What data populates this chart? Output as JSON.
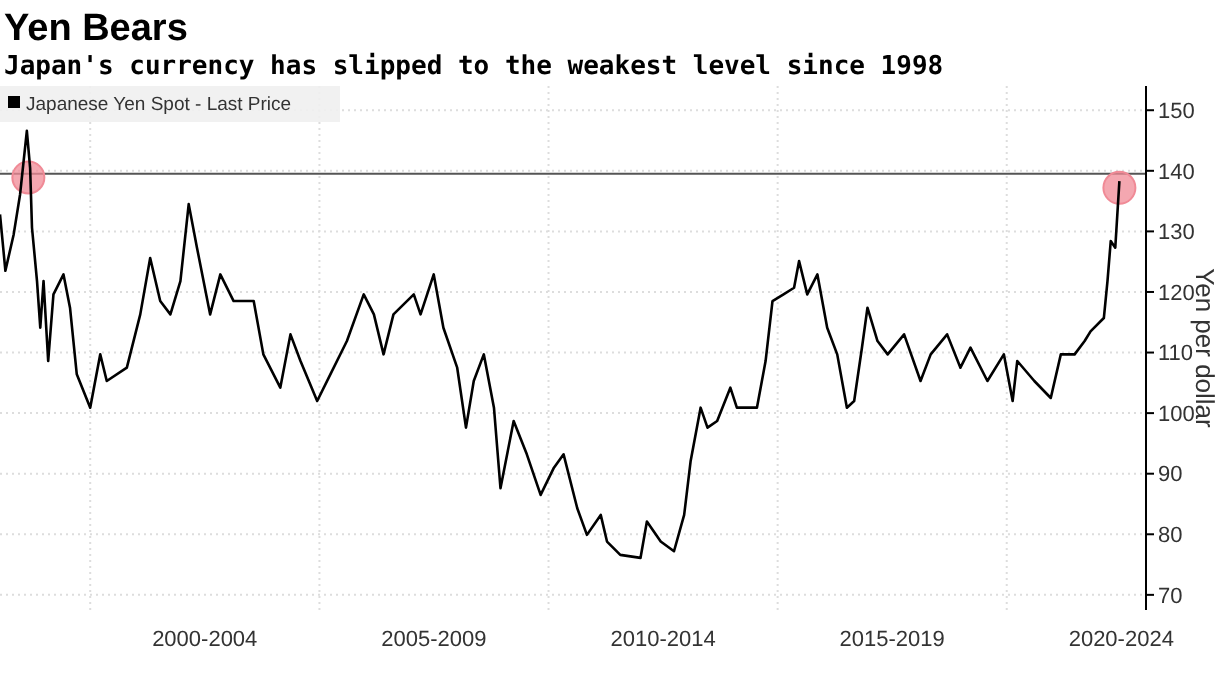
{
  "chart_data": {
    "type": "line",
    "title": "Yen Bears",
    "subtitle": "Japan's currency has slipped to the weakest level since 1998",
    "ylabel": "Yen per dollar",
    "xlim": [
      "1998-01-12",
      "2023-01-15"
    ],
    "xticks": [
      {
        "value": "2000-01-01",
        "label": null
      },
      {
        "value": "2002-07-02",
        "label": "2000-2004"
      },
      {
        "value": "2005-01-01",
        "label": null
      },
      {
        "value": "2007-07-02",
        "label": "2005-2009"
      },
      {
        "value": "2010-01-01",
        "label": null
      },
      {
        "value": "2012-07-02",
        "label": "2010-2014"
      },
      {
        "value": "2015-01-01",
        "label": null
      },
      {
        "value": "2017-07-02",
        "label": "2015-2019"
      },
      {
        "value": "2020-01-01",
        "label": null
      },
      {
        "value": "2022-07-02",
        "label": "2020-2024"
      }
    ],
    "ylim": [
      67.5,
      154
    ],
    "yticks": [
      70,
      80,
      90,
      100,
      110,
      120,
      130,
      140,
      150
    ],
    "grid": true,
    "legend": "top left",
    "ref_lines": [
      {
        "axis": "y",
        "value": 139.5,
        "color": "#555555"
      }
    ],
    "series": [
      {
        "name": "Japanese Yen Spot - Last Price",
        "color": "#000000",
        "x": [
          "1998-01-12",
          "1998-02-24",
          "1998-05-01",
          "1998-06-21",
          "1998-08-14",
          "1998-09-09",
          "1998-09-24",
          "1998-11-03",
          "1998-11-29",
          "1998-12-25",
          "1999-01-31",
          "1999-03-14",
          "1999-06-02",
          "1999-07-24",
          "1999-09-16",
          "2000-01-01",
          "2000-03-21",
          "2000-05-12",
          "2000-10-19",
          "2001-02-03",
          "2001-04-23",
          "2001-07-12",
          "2001-10-01",
          "2001-12-20",
          "2002-02-24",
          "2002-05-01",
          "2002-08-14",
          "2002-11-03",
          "2003-02-17",
          "2003-07-27",
          "2003-10-12",
          "2004-02-24",
          "2004-05-15",
          "2004-08-03",
          "2004-12-14",
          "2005-03-29",
          "2005-08-08",
          "2005-12-20",
          "2006-03-11",
          "2006-05-27",
          "2006-08-14",
          "2007-01-23",
          "2007-03-18",
          "2007-07-01",
          "2007-09-16",
          "2008-01-04",
          "2008-03-14",
          "2008-05-15",
          "2008-08-03",
          "2008-10-23",
          "2008-12-14",
          "2009-03-29",
          "2009-07-12",
          "2009-10-30",
          "2010-02-13",
          "2010-05-01",
          "2010-08-18",
          "2010-11-03",
          "2011-02-21",
          "2011-04-12",
          "2011-07-27",
          "2012-01-04",
          "2012-02-24",
          "2012-06-13",
          "2012-09-27",
          "2012-12-17",
          "2013-02-06",
          "2013-04-27",
          "2013-06-21",
          "2013-09-06",
          "2013-12-20",
          "2014-02-10",
          "2014-07-20",
          "2014-09-27",
          "2014-11-21",
          "2015-02-17",
          "2015-05-12",
          "2015-06-21",
          "2015-08-25",
          "2015-11-14",
          "2016-01-31",
          "2016-04-20",
          "2016-07-06",
          "2016-09-02",
          "2016-11-03",
          "2016-12-17",
          "2017-03-07",
          "2017-05-27",
          "2017-10-05",
          "2018-02-13",
          "2018-05-05",
          "2018-09-13",
          "2018-12-28",
          "2019-03-18",
          "2019-07-31",
          "2019-12-09",
          "2020-02-17",
          "2020-03-25",
          "2020-08-08",
          "2020-12-17",
          "2021-03-07",
          "2021-06-25",
          "2021-09-13",
          "2021-10-30",
          "2022-02-13",
          "2022-03-14",
          "2022-04-09",
          "2022-05-15",
          "2022-06-17"
        ],
        "values": [
          132.8,
          123.5,
          129.5,
          136.1,
          146.6,
          140.5,
          130.6,
          121.8,
          114.1,
          121.8,
          108.6,
          119.6,
          122.9,
          117.4,
          106.4,
          100.9,
          109.7,
          105.3,
          107.5,
          116.3,
          125.6,
          118.5,
          116.3,
          121.8,
          134.5,
          127.3,
          116.3,
          122.9,
          118.5,
          118.5,
          109.7,
          104.2,
          113.0,
          108.6,
          102.0,
          106.4,
          111.9,
          119.6,
          116.3,
          109.7,
          116.3,
          119.6,
          116.3,
          122.9,
          114.1,
          107.5,
          97.6,
          105.3,
          109.7,
          100.9,
          87.6,
          98.7,
          93.2,
          86.5,
          91.0,
          93.2,
          84.3,
          79.9,
          83.2,
          78.8,
          76.6,
          76.1,
          82.1,
          78.8,
          77.2,
          83.2,
          92.0,
          100.9,
          97.6,
          98.7,
          104.2,
          100.9,
          100.9,
          108.6,
          118.5,
          119.6,
          120.7,
          125.1,
          119.6,
          122.9,
          114.1,
          109.7,
          100.9,
          102.0,
          110.8,
          117.4,
          111.9,
          109.7,
          113.0,
          105.3,
          109.7,
          113.0,
          107.5,
          110.8,
          105.3,
          109.7,
          102.0,
          108.6,
          105.3,
          102.5,
          109.7,
          109.7,
          111.9,
          113.5,
          115.7,
          121.8,
          128.4,
          127.3,
          138.3
        ]
      },
      {
        "type": "scatter",
        "color": "#f08a96",
        "x": [
          "1998-08-26",
          "2022-06-17"
        ],
        "values": [
          138.9,
          137.2
        ]
      }
    ]
  }
}
